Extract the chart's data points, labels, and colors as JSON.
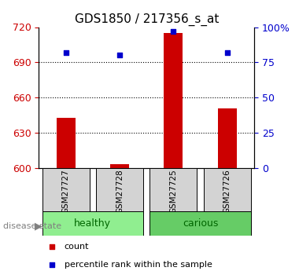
{
  "title": "GDS1850 / 217356_s_at",
  "samples": [
    "GSM27727",
    "GSM27728",
    "GSM27725",
    "GSM27726"
  ],
  "counts": [
    643,
    603,
    715,
    651
  ],
  "percentiles": [
    82,
    80,
    97,
    82
  ],
  "ylim_left": [
    600,
    720
  ],
  "ylim_right": [
    0,
    100
  ],
  "yticks_left": [
    600,
    630,
    660,
    690,
    720
  ],
  "yticks_right": [
    0,
    25,
    50,
    75,
    100
  ],
  "ytick_labels_right": [
    "0",
    "25",
    "50",
    "75",
    "100%"
  ],
  "bar_color": "#cc0000",
  "dot_color": "#0000cc",
  "bar_width": 0.35,
  "healthy_color": "#90ee90",
  "carious_color": "#66cc66",
  "group_label_color": "#006600",
  "left_axis_color": "#cc0000",
  "right_axis_color": "#0000cc",
  "legend_count_color": "#cc0000",
  "legend_pct_color": "#0000cc",
  "legend_count_label": "count",
  "legend_pct_label": "percentile rank within the sample",
  "disease_state_label": "disease state",
  "background_color": "#ffffff",
  "grid_color": "#000000",
  "title_fontsize": 11,
  "tick_fontsize": 9,
  "label_fontsize": 8
}
